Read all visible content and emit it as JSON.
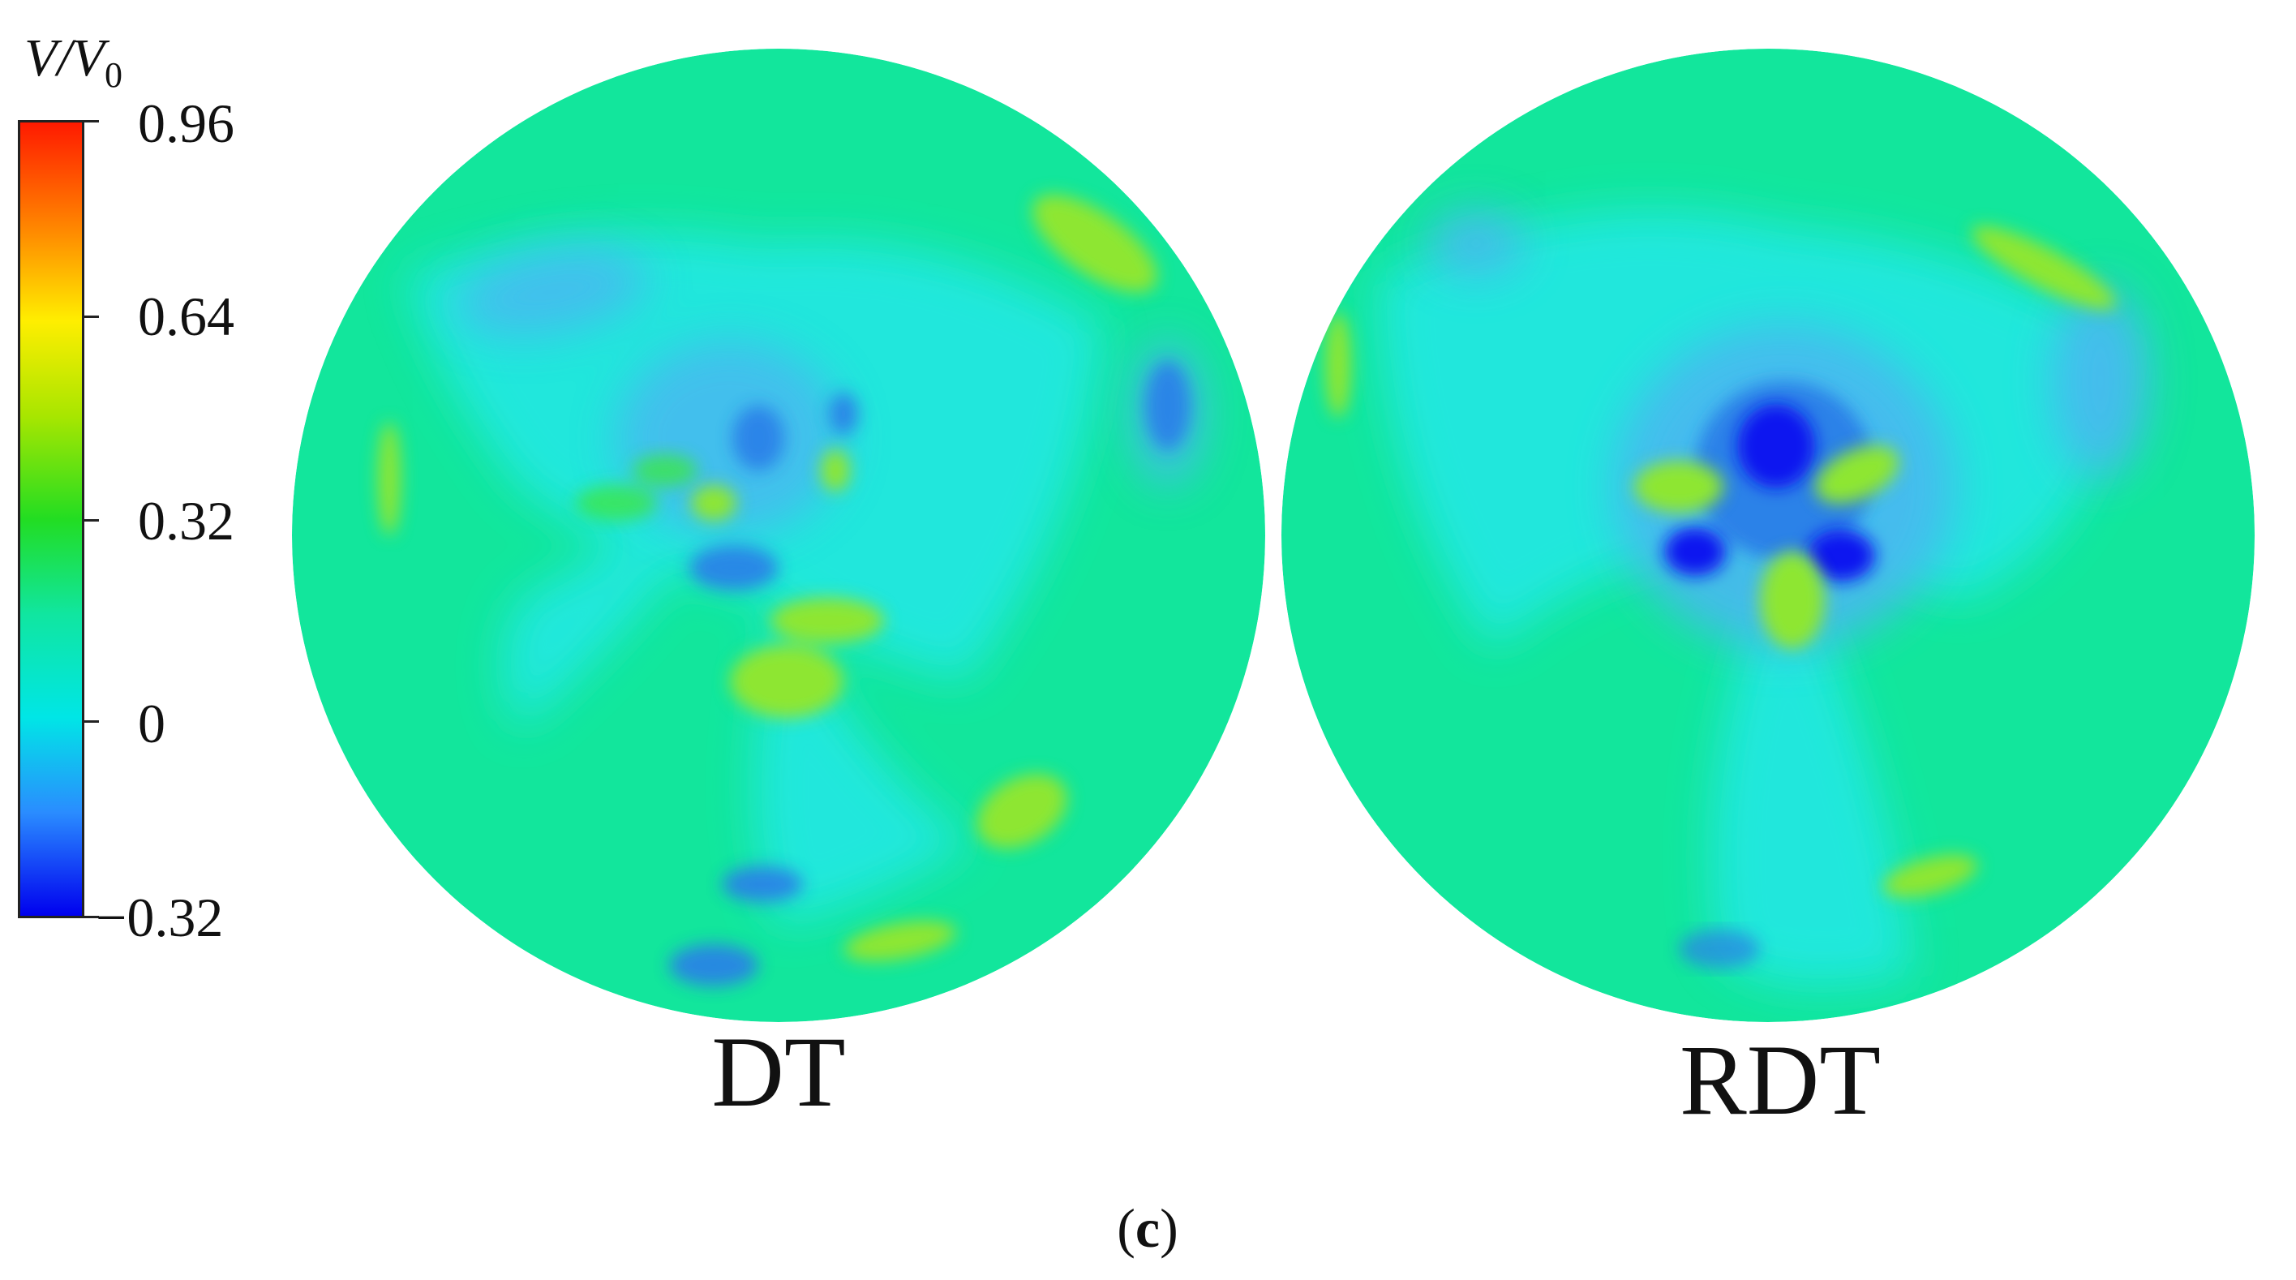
{
  "colorbar": {
    "title_var": "V",
    "title_ref": "V",
    "title_sub": "0",
    "ticks": [
      "0.96",
      "0.64",
      "0.32",
      "0",
      "−0.32"
    ],
    "colors": [
      "#ff1a00",
      "#ff8c00",
      "#ffee00",
      "#a8e600",
      "#22dd22",
      "#10e6a0",
      "#00e6e6",
      "#2a8cff",
      "#0000ee"
    ]
  },
  "panels": [
    {
      "label": "DT"
    },
    {
      "label": "RDT"
    }
  ],
  "caption": {
    "open": "(",
    "letter": "c",
    "close": ")"
  }
}
